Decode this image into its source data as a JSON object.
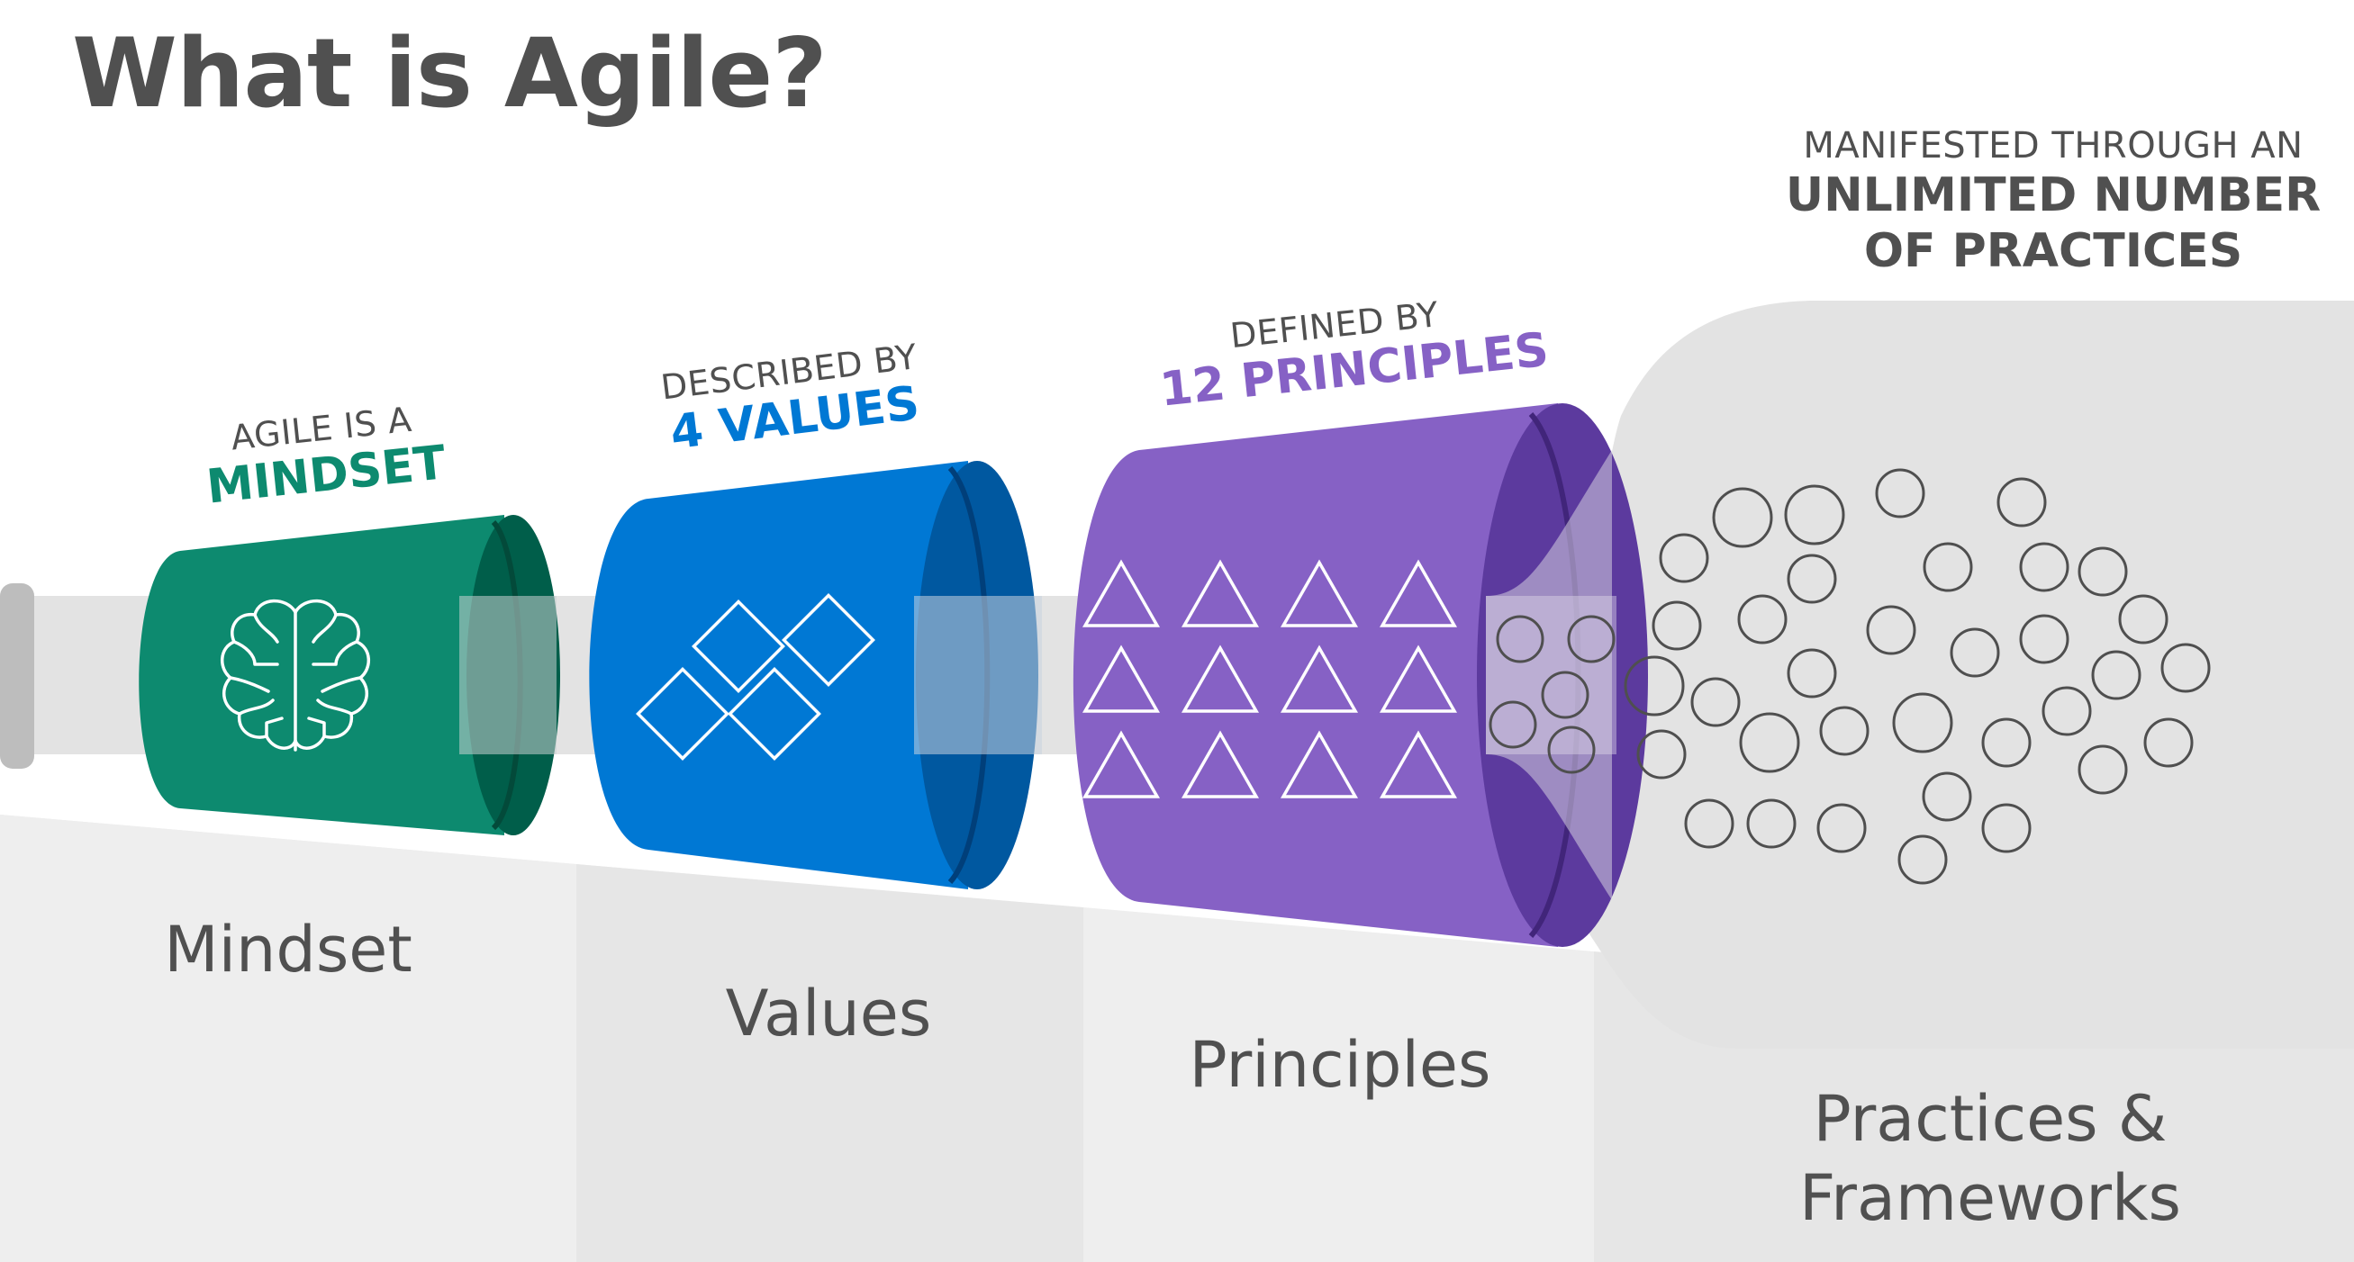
{
  "title": "What is Agile?",
  "top_caption": {
    "line1": "MANIFESTED THROUGH AN",
    "line2": "UNLIMITED NUMBER",
    "line3": "OF PRACTICES"
  },
  "stages": [
    {
      "id": "mindset",
      "caption_small": "AGILE IS A",
      "caption_big": "MINDSET",
      "label": "Mindset",
      "color": "#0d8a6f",
      "icon": "brain-icon"
    },
    {
      "id": "values",
      "caption_small": "DESCRIBED BY",
      "caption_big": "4 VALUES",
      "label": "Values",
      "color": "#0078d4",
      "icon": "diamond-icon"
    },
    {
      "id": "principles",
      "caption_small": "DEFINED BY",
      "caption_big": "12 PRINCIPLES",
      "label": "Principles",
      "color": "#8661c5",
      "icon": "triangle-icon"
    },
    {
      "id": "practices",
      "label_line1": "Practices &",
      "label_line2": "Frameworks",
      "icon": "circle-icon"
    }
  ],
  "colors": {
    "text": "#505050",
    "mindset": "#0d8a6f",
    "mindset_dark": "#005e4a",
    "values": "#0078d4",
    "values_dark": "#0058a0",
    "principles": "#8661c5",
    "principles_dark": "#5c3a9e",
    "pipe": "#e0e0e0",
    "floor": "#efefef"
  }
}
